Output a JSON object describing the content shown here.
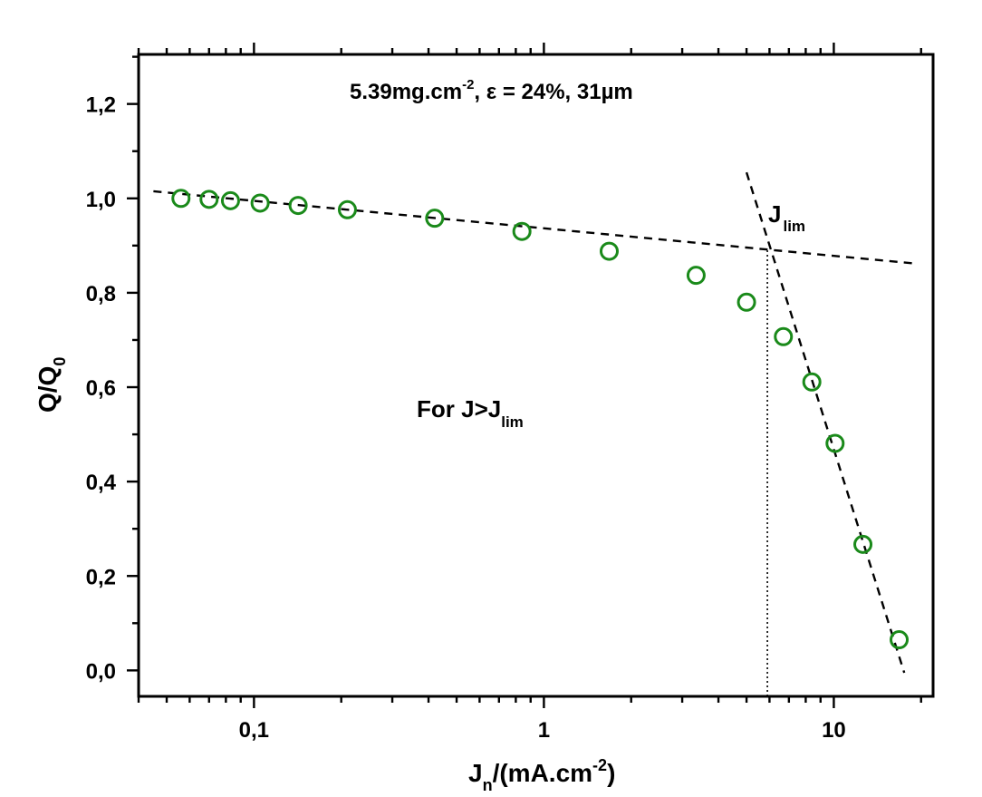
{
  "chart_data": {
    "type": "scatter",
    "title": "",
    "xlabel": "J",
    "xlabel_sub": "n",
    "xlabel_rest": "/(mA.cm",
    "xlabel_sup": "-2",
    "xlabel_close": ")",
    "ylabel": "Q/Q",
    "ylabel_sub": "0",
    "xscale": "log",
    "xlim": [
      0.04,
      22
    ],
    "ylim": [
      -0.055,
      1.305
    ],
    "x_ticks": [
      0.1,
      1,
      10
    ],
    "x_tick_labels": [
      "0,1",
      "1",
      "10"
    ],
    "y_ticks": [
      0.0,
      0.2,
      0.4,
      0.6,
      0.8,
      1.0,
      1.2
    ],
    "y_tick_labels": [
      "0,0",
      "0,2",
      "0,4",
      "0,6",
      "0,8",
      "1,0",
      "1,2"
    ],
    "grid": false,
    "marker_color": "#1a8a1a",
    "series": [
      {
        "marker": "open-circle",
        "x": [
          0.056,
          0.07,
          0.083,
          0.105,
          0.142,
          0.21,
          0.42,
          0.84,
          1.68,
          3.35,
          5.0,
          6.7,
          8.4,
          10.1,
          12.6,
          16.8
        ],
        "y": [
          1.0,
          0.998,
          0.995,
          0.99,
          0.985,
          0.976,
          0.958,
          0.93,
          0.888,
          0.837,
          0.78,
          0.707,
          0.611,
          0.481,
          0.267,
          0.065
        ]
      }
    ],
    "fit_lines": [
      {
        "style": "dashed",
        "x": [
          0.045,
          19
        ],
        "y": [
          1.015,
          0.862
        ]
      },
      {
        "style": "dashed",
        "x": [
          5.0,
          17.5
        ],
        "y": [
          1.055,
          -0.005
        ]
      }
    ],
    "guide_lines": [
      {
        "style": "dotted",
        "x": [
          5.9,
          5.9
        ],
        "y": [
          0.89,
          -0.055
        ]
      }
    ],
    "annotations": {
      "header": {
        "main": "5.39mg.cm",
        "sup": "-2",
        "rest": ", ε = 24%, 31µm"
      },
      "jlim_label": {
        "main": "J",
        "sub": "lim"
      },
      "region_label": {
        "main": "For J>J",
        "sub": "lim"
      }
    }
  }
}
